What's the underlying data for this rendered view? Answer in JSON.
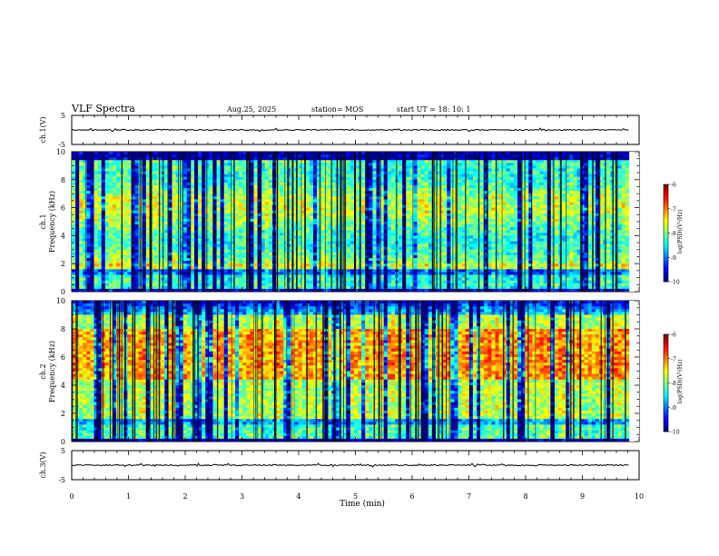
{
  "header": {
    "title": "VLF Spectra",
    "date": "Aug.25, 2025",
    "station": "station= MOS",
    "start": "start  UT =   18: 10: 1"
  },
  "chart_data": [
    {
      "type": "line",
      "name": "ch1-waveform",
      "ylabel": "ch.1(V)",
      "ylim": [
        -5,
        5
      ],
      "y_ticks": [
        "5",
        "-5"
      ],
      "baseline": 0
    },
    {
      "type": "heatmap",
      "name": "ch1-spectrogram",
      "ylabel": "ch.1\nFrequency (kHz)",
      "ylim": [
        0,
        10
      ],
      "y_ticks": [
        "0",
        "2",
        "4",
        "6",
        "8",
        "10"
      ],
      "colorbar": {
        "label": "log(PSD)(V²/Hz)",
        "range": [
          -10,
          -6
        ],
        "ticks": [
          "-6",
          "-7",
          "-8",
          "-9",
          "-10"
        ]
      }
    },
    {
      "type": "heatmap",
      "name": "ch2-spectrogram",
      "ylabel": "ch.2\nFrequency (kHz)",
      "ylim": [
        0,
        10
      ],
      "y_ticks": [
        "0",
        "2",
        "4",
        "6",
        "8",
        "10"
      ],
      "colorbar": {
        "label": "log(PSD)(V²/Hz)",
        "range": [
          -10,
          -6
        ],
        "ticks": [
          "-6",
          "-7",
          "-8",
          "-9",
          "-10"
        ]
      }
    },
    {
      "type": "line",
      "name": "ch3-waveform",
      "ylabel": "ch.3(V)",
      "ylim": [
        -5,
        5
      ],
      "y_ticks": [
        "5",
        "-5"
      ],
      "baseline": 0
    }
  ],
  "x_axis": {
    "label": "Time (min)",
    "range": [
      0,
      10
    ],
    "data_end": 9.82,
    "ticks": [
      "0",
      "1",
      "2",
      "3",
      "4",
      "5",
      "6",
      "7",
      "8",
      "9",
      "10"
    ]
  },
  "ch1_ylabel_top": "ch.1",
  "ch1_ylabel_bottom": "Frequency (kHz)",
  "ch2_ylabel_top": "ch.2",
  "ch2_ylabel_bottom": "Frequency (kHz)",
  "colorbar_label": "log(PSD)(V²/Hz)",
  "colors": {
    "low": "#0000aa",
    "mid": "#22cc66",
    "high": "#ff2200",
    "background": "#ffffff"
  }
}
